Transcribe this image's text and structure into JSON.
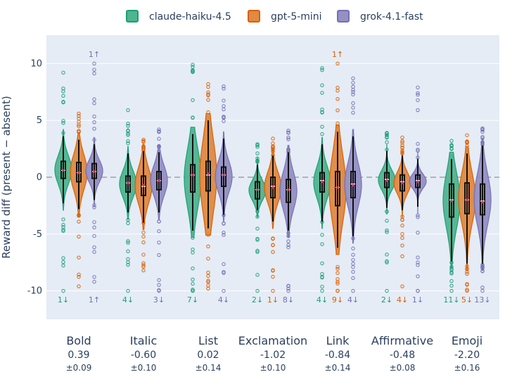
{
  "chart_data": {
    "type": "violin",
    "title": "",
    "xlabel": "",
    "ylabel": "Reward diff (present − absent)",
    "ylim": [
      -12.5,
      12.5
    ],
    "yticks": [
      -10,
      -5,
      0,
      5,
      10
    ],
    "grid": true,
    "legend_position": "top",
    "series": [
      {
        "name": "claude-haiku-4.5",
        "color": "#1b9e77",
        "fill": "#4fb58f"
      },
      {
        "name": "gpt-5-mini",
        "color": "#d95f02",
        "fill": "#e08a43"
      },
      {
        "name": "grok-4.1-fast",
        "color": "#7570b3",
        "fill": "#9490c4"
      }
    ],
    "categories": [
      {
        "label": "Bold",
        "mean": "0.39",
        "se": "±0.09",
        "stats": [
          {
            "min": -2.3,
            "q1": -0.1,
            "median": 0.6,
            "q3": 1.4,
            "max": 3.6,
            "mean": 0.6,
            "spread": 1.0,
            "tail_lo": -10,
            "tail_hi": 9.2,
            "clip": "1↓"
          },
          {
            "min": -2.8,
            "q1": -0.4,
            "median": 0.4,
            "q3": 1.3,
            "max": 3.3,
            "mean": 0.4,
            "spread": 1.1,
            "tail_lo": -9.6,
            "tail_hi": 5.6,
            "clip": ""
          },
          {
            "min": -2.0,
            "q1": -0.1,
            "median": 0.5,
            "q3": 1.2,
            "max": 2.9,
            "mean": 0.5,
            "spread": 0.9,
            "tail_lo": -9.2,
            "tail_hi": 10.0,
            "clip": "1↑"
          }
        ]
      },
      {
        "label": "Italic",
        "mean": "-0.60",
        "se": "±0.10",
        "stats": [
          {
            "min": -3.1,
            "q1": -1.3,
            "median": -0.5,
            "q3": 0.1,
            "max": 2.1,
            "mean": -0.5,
            "spread": 1.0,
            "tail_lo": -10,
            "tail_hi": 5.9,
            "clip": "4↓"
          },
          {
            "min": -4.0,
            "q1": -1.6,
            "median": -0.8,
            "q3": 0.1,
            "max": 2.3,
            "mean": -0.7,
            "spread": 1.1,
            "tail_lo": -8.2,
            "tail_hi": 3.3,
            "clip": ""
          },
          {
            "min": -3.1,
            "q1": -1.1,
            "median": -0.3,
            "q3": 0.5,
            "max": 2.2,
            "mean": -0.3,
            "spread": 1.0,
            "tail_lo": -10,
            "tail_hi": 4.2,
            "clip": "3↓"
          }
        ]
      },
      {
        "label": "List",
        "mean": "0.02",
        "se": "±0.14",
        "stats": [
          {
            "min": -4.7,
            "q1": -1.3,
            "median": 0.2,
            "q3": 1.1,
            "max": 3.8,
            "mean": 0.2,
            "spread": 1.3,
            "tail_lo": -10,
            "tail_hi": 9.9,
            "clip": "7↓"
          },
          {
            "min": -4.5,
            "q1": -1.2,
            "median": 0.2,
            "q3": 1.4,
            "max": 5.0,
            "mean": 0.3,
            "spread": 1.5,
            "tail_lo": -9.8,
            "tail_hi": 8.2,
            "clip": ""
          },
          {
            "min": -3.3,
            "q1": -0.8,
            "median": 0.2,
            "q3": 0.9,
            "max": 3.4,
            "mean": 0.2,
            "spread": 1.0,
            "tail_lo": -10,
            "tail_hi": 8.0,
            "clip": "4↓"
          }
        ]
      },
      {
        "label": "Exclamation",
        "mean": "-1.02",
        "se": "±0.10",
        "stats": [
          {
            "min": -2.9,
            "q1": -1.9,
            "median": -1.1,
            "q3": -0.4,
            "max": 1.1,
            "mean": -1.1,
            "spread": 0.7,
            "tail_lo": -10,
            "tail_hi": 2.9,
            "clip": "2↓"
          },
          {
            "min": -3.9,
            "q1": -1.8,
            "median": -0.8,
            "q3": 0.0,
            "max": 1.9,
            "mean": -0.9,
            "spread": 0.9,
            "tail_lo": -10,
            "tail_hi": 3.4,
            "clip": "1↓"
          },
          {
            "min": -4.7,
            "q1": -2.2,
            "median": -1.1,
            "q3": -0.2,
            "max": 2.2,
            "mean": -1.1,
            "spread": 1.0,
            "tail_lo": -10,
            "tail_hi": 4.1,
            "clip": "8↓"
          }
        ]
      },
      {
        "label": "Link",
        "mean": "-0.84",
        "se": "±0.14",
        "stats": [
          {
            "min": -3.9,
            "q1": -1.3,
            "median": -0.3,
            "q3": 0.4,
            "max": 2.9,
            "mean": -0.4,
            "spread": 1.0,
            "tail_lo": -10,
            "tail_hi": 9.6,
            "clip": "4↓"
          },
          {
            "min": -6.2,
            "q1": -2.5,
            "median": -0.9,
            "q3": 0.5,
            "max": 4.0,
            "mean": -0.9,
            "spread": 1.2,
            "tail_lo": -10,
            "tail_hi": 10.0,
            "clip": "9↓"
          },
          {
            "min": -5.2,
            "q1": -1.8,
            "median": -0.6,
            "q3": 0.5,
            "max": 3.6,
            "mean": -0.7,
            "spread": 1.0,
            "tail_lo": -10,
            "tail_hi": 8.7,
            "clip": "4↓"
          }
        ]
      },
      {
        "label": "Affirmative",
        "mean": "-0.48",
        "se": "±0.08",
        "stats": [
          {
            "min": -2.7,
            "q1": -0.9,
            "median": -0.2,
            "q3": 0.4,
            "max": 2.3,
            "mean": -0.3,
            "spread": 0.8,
            "tail_lo": -10,
            "tail_hi": 3.9,
            "clip": "2↓"
          },
          {
            "min": -2.9,
            "q1": -1.2,
            "median": -0.4,
            "q3": 0.2,
            "max": 1.9,
            "mean": -0.5,
            "spread": 0.8,
            "tail_lo": -9.6,
            "tail_hi": 3.5,
            "clip": "4↓"
          },
          {
            "min": -2.6,
            "q1": -0.9,
            "median": -0.3,
            "q3": 0.2,
            "max": 1.6,
            "mean": -0.4,
            "spread": 0.7,
            "tail_lo": -10,
            "tail_hi": 7.9,
            "clip": "1↓"
          }
        ]
      },
      {
        "label": "Emoji",
        "mean": "-2.20",
        "se": "±0.16",
        "stats": [
          {
            "min": -7.4,
            "q1": -3.5,
            "median": -2.0,
            "q3": -0.6,
            "max": 1.6,
            "mean": -2.1,
            "spread": 1.0,
            "tail_lo": -10,
            "tail_hi": 3.2,
            "clip": "11↓"
          },
          {
            "min": -7.6,
            "q1": -3.2,
            "median": -2.0,
            "q3": -0.5,
            "max": 2.1,
            "mean": -2.0,
            "spread": 1.0,
            "tail_lo": -10,
            "tail_hi": 3.7,
            "clip": "5↓"
          },
          {
            "min": -7.6,
            "q1": -3.3,
            "median": -2.1,
            "q3": -0.6,
            "max": 2.8,
            "mean": -2.2,
            "spread": 1.0,
            "tail_lo": -10,
            "tail_hi": 4.3,
            "clip": "13↓"
          }
        ]
      }
    ],
    "top_clip_labels": [
      {
        "category": 0,
        "series": 2,
        "text": "1↑"
      },
      {
        "category": 4,
        "series": 1,
        "text": "1↑"
      }
    ]
  }
}
